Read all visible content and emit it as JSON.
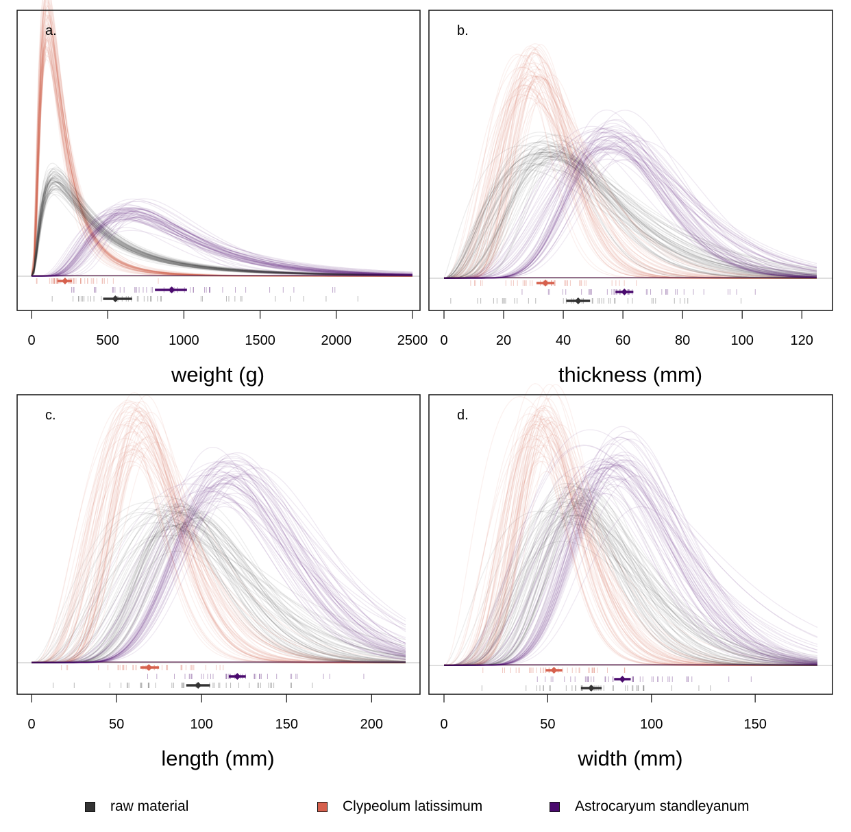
{
  "legend": {
    "items": [
      {
        "label": "raw material",
        "color": "#333333"
      },
      {
        "label": "Clypeolum latissimum",
        "color": "#D6604D"
      },
      {
        "label": "Astrocaryum standleyanum",
        "color": "#4A0A6E"
      }
    ]
  },
  "chart_data": [
    {
      "type": "line",
      "panel": "a.",
      "title": "a.",
      "xlabel": "weight (g)",
      "ylabel": "",
      "xlim": [
        0,
        2500
      ],
      "xticks": [
        0,
        500,
        1000,
        1500,
        2000,
        2500
      ],
      "xtick_labels": [
        "0",
        "500",
        "1000",
        "1500",
        "2000",
        "2500"
      ],
      "distribution": "lognormal posterior density draws",
      "series": [
        {
          "name": "Clypeolum latissimum",
          "color": "#D6604D",
          "mode_x": 100,
          "peak_density_rel": 1.0,
          "mean": 220,
          "interval": [
            170,
            265
          ]
        },
        {
          "name": "raw material",
          "color": "#333333",
          "mode_x": 150,
          "peak_density_rel": 0.38,
          "mean": 550,
          "interval": [
            470,
            660
          ]
        },
        {
          "name": "Astrocaryum standleyanum",
          "color": "#4A0A6E",
          "mode_x": 650,
          "peak_density_rel": 0.25,
          "mean": 920,
          "interval": [
            810,
            1020
          ]
        }
      ]
    },
    {
      "type": "line",
      "panel": "b.",
      "title": "b.",
      "xlabel": "thickness (mm)",
      "ylabel": "",
      "xlim": [
        0,
        125
      ],
      "xticks": [
        0,
        20,
        40,
        60,
        80,
        100,
        120
      ],
      "xtick_labels": [
        "0",
        "20",
        "40",
        "60",
        "80",
        "100",
        "120"
      ],
      "distribution": "posterior density draws",
      "series": [
        {
          "name": "Clypeolum latissimum",
          "color": "#D6604D",
          "mode_x": 30,
          "peak_density_rel": 1.0,
          "mean": 34,
          "interval": [
            31,
            37
          ]
        },
        {
          "name": "raw material",
          "color": "#333333",
          "mode_x": 35,
          "peak_density_rel": 0.62,
          "mean": 45,
          "interval": [
            41,
            49
          ]
        },
        {
          "name": "Astrocaryum standleyanum",
          "color": "#4A0A6E",
          "mode_x": 56,
          "peak_density_rel": 0.67,
          "mean": 60.5,
          "interval": [
            57.5,
            63.5
          ]
        }
      ]
    },
    {
      "type": "line",
      "panel": "c.",
      "title": "c.",
      "xlabel": "length (mm)",
      "ylabel": "",
      "xlim": [
        0,
        220
      ],
      "xticks": [
        0,
        50,
        100,
        150,
        200
      ],
      "xtick_labels": [
        "0",
        "50",
        "100",
        "150",
        "200"
      ],
      "distribution": "posterior density draws",
      "series": [
        {
          "name": "Clypeolum latissimum",
          "color": "#D6604D",
          "mode_x": 62,
          "peak_density_rel": 1.0,
          "mean": 69,
          "interval": [
            64,
            75
          ]
        },
        {
          "name": "raw material",
          "color": "#333333",
          "mode_x": 88,
          "peak_density_rel": 0.61,
          "mean": 98,
          "interval": [
            91,
            105
          ]
        },
        {
          "name": "Astrocaryum standleyanum",
          "color": "#4A0A6E",
          "mode_x": 115,
          "peak_density_rel": 0.8,
          "mean": 121,
          "interval": [
            116,
            126
          ]
        }
      ]
    },
    {
      "type": "line",
      "panel": "d.",
      "title": "d.",
      "xlabel": "width (mm)",
      "ylabel": "",
      "xlim": [
        0,
        180
      ],
      "xticks": [
        0,
        50,
        100,
        150
      ],
      "xtick_labels": [
        "0",
        "50",
        "100",
        "150"
      ],
      "distribution": "posterior density draws",
      "series": [
        {
          "name": "Clypeolum latissimum",
          "color": "#D6604D",
          "mode_x": 48,
          "peak_density_rel": 1.0,
          "mean": 53,
          "interval": [
            49,
            57
          ]
        },
        {
          "name": "raw material",
          "color": "#333333",
          "mode_x": 65,
          "peak_density_rel": 0.67,
          "mean": 71,
          "interval": [
            66,
            76
          ]
        },
        {
          "name": "Astrocaryum standleyanum",
          "color": "#4A0A6E",
          "mode_x": 82,
          "peak_density_rel": 0.86,
          "mean": 86,
          "interval": [
            82,
            90
          ]
        }
      ]
    }
  ]
}
